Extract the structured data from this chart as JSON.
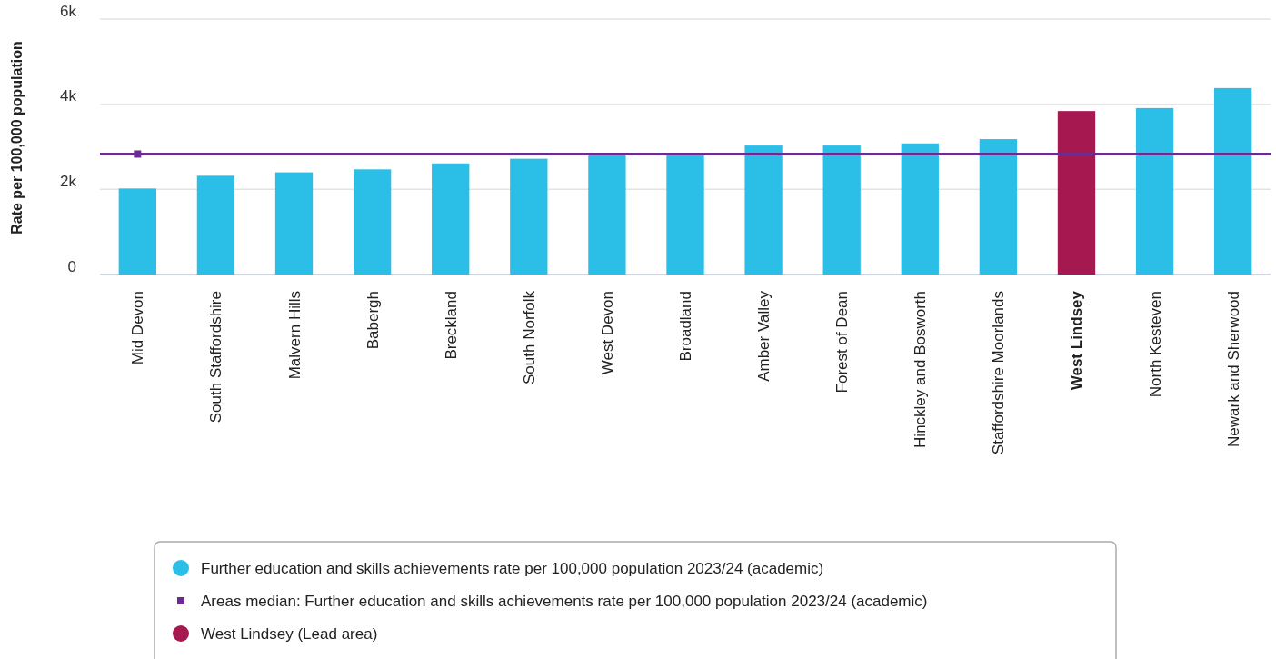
{
  "chart_data": {
    "type": "bar",
    "stacked": true,
    "ylabel": "Rate per 100,000 population",
    "categories": [
      "Mid Devon",
      "South Staffordshire",
      "Malvern Hills",
      "Babergh",
      "Breckland",
      "South Norfolk",
      "West Devon",
      "Broadland",
      "Amber Valley",
      "Forest of Dean",
      "Hinckley and Bosworth",
      "Staffordshire Moorlands",
      "West Lindsey",
      "North Kesteven",
      "Newark and Sherwood"
    ],
    "series": [
      {
        "name": "Further education and skills achievements rate per 100,000 population 2023/24 (academic)",
        "color": "#2bbfe8",
        "values": [
          2020,
          2320,
          2400,
          2470,
          2610,
          2720,
          2810,
          2810,
          3030,
          3030,
          3080,
          3180,
          null,
          3910,
          4380
        ]
      },
      {
        "name": "West Lindsey (Lead area)",
        "color": "#a51950",
        "values": [
          null,
          null,
          null,
          null,
          null,
          null,
          null,
          null,
          null,
          null,
          null,
          null,
          3840,
          null,
          null
        ]
      }
    ],
    "ref_lines": [
      {
        "axis": "y",
        "value": 2830,
        "label": "Areas median: Further education and skills achievements rate per 100,000 population 2023/24 (academic)",
        "color": "#6a2c91"
      }
    ],
    "ylim": [
      0,
      6000
    ],
    "yticks": [
      0,
      {
        "value": 2000,
        "label": "2k"
      },
      {
        "value": 4000,
        "label": "4k"
      },
      {
        "value": 6000,
        "label": "6k"
      }
    ],
    "grid": "y",
    "legend": "bottom"
  }
}
